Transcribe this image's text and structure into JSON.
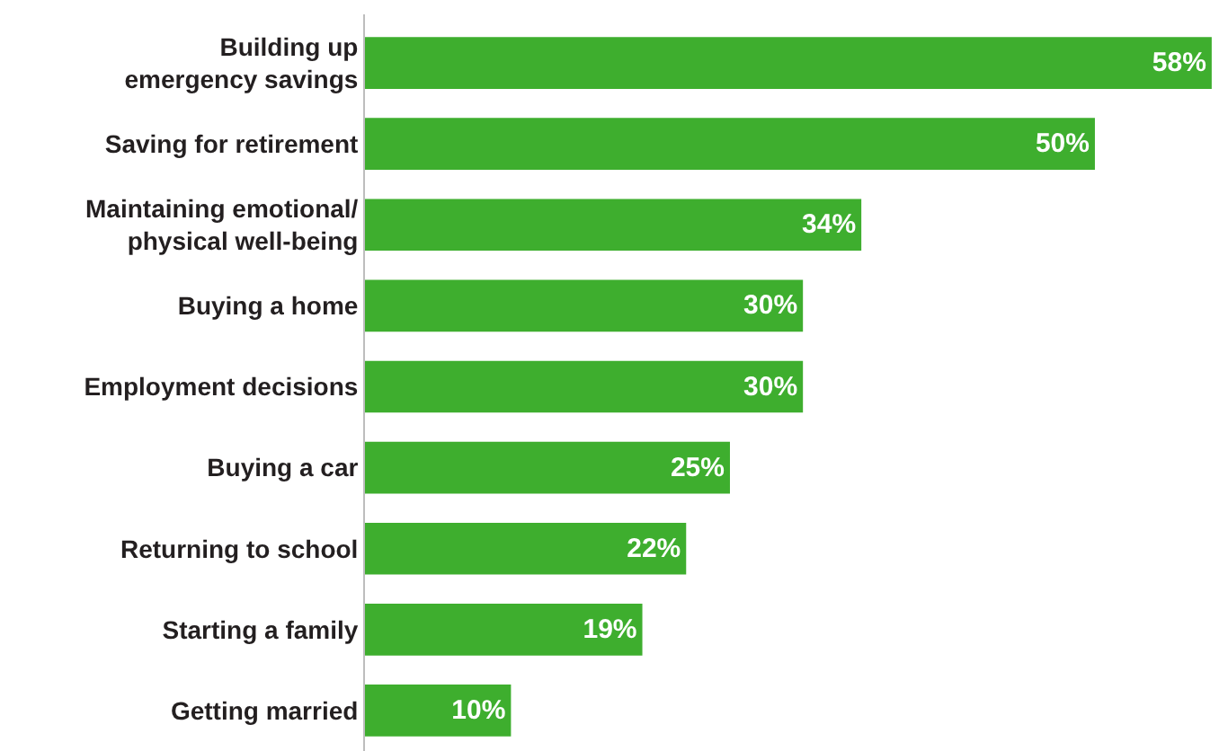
{
  "chart_data": {
    "type": "bar",
    "orientation": "horizontal",
    "categories": [
      "Building up\nemergency savings",
      "Saving for retirement",
      "Maintaining emotional/\nphysical well-being",
      "Buying a home",
      "Employment decisions",
      "Buying a car",
      "Returning to school",
      "Starting a family",
      "Getting married"
    ],
    "values": [
      58,
      50,
      34,
      30,
      30,
      25,
      22,
      19,
      10
    ],
    "value_labels": [
      "58%",
      "50%",
      "34%",
      "30%",
      "30%",
      "25%",
      "22%",
      "19%",
      "10%"
    ],
    "color": "#3eae2e",
    "xlim": [
      0,
      58.5
    ],
    "tick_labels": "y"
  }
}
